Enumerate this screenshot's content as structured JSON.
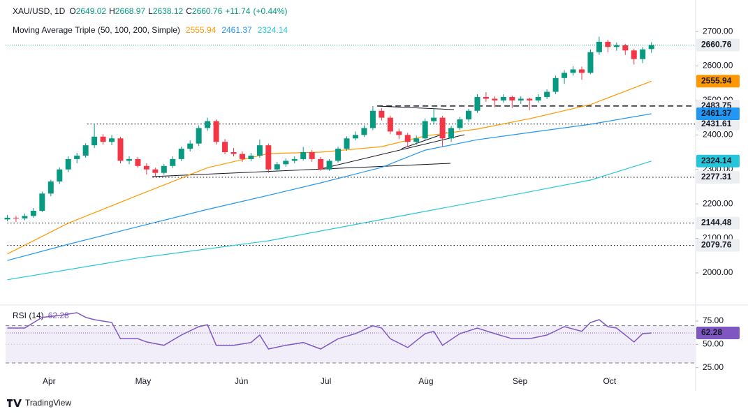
{
  "chart_data": {
    "type": "candlestick",
    "title": "XAU/USD, 1D",
    "ohlc_labels": [
      "O",
      "H",
      "L",
      "C"
    ],
    "change": {
      "value": 11.74,
      "label": "+11.74"
    },
    "change_pct": {
      "value": 0.44,
      "label": "(+0.44%)"
    },
    "up_color": "#089981",
    "down_color": "#f23645",
    "ylim": [
      1921,
      2771
    ],
    "yticks": [
      {
        "value": 2000,
        "label": "2000.00"
      },
      {
        "value": 2100,
        "label": "2100.00"
      },
      {
        "value": 2200,
        "label": "2200.00"
      },
      {
        "value": 2300,
        "label": "2300.00"
      },
      {
        "value": 2400,
        "label": "2400.00"
      },
      {
        "value": 2500,
        "label": "2500.00"
      },
      {
        "value": 2600,
        "label": "2600.00"
      },
      {
        "value": 2700,
        "label": "2700.00"
      }
    ],
    "xlim": [
      -0.2,
      79
    ],
    "xticks": [
      {
        "value": 4.8,
        "label": "Apr"
      },
      {
        "value": 15.6,
        "label": "May"
      },
      {
        "value": 26.9,
        "label": "Jun"
      },
      {
        "value": 36.6,
        "label": "Jul"
      },
      {
        "value": 48.1,
        "label": "Aug"
      },
      {
        "value": 58.9,
        "label": "Sep"
      },
      {
        "value": 69.2,
        "label": "Oct"
      }
    ],
    "candles": [
      [
        2155,
        2168,
        2150,
        2160
      ],
      [
        2160,
        2165,
        2148,
        2158
      ],
      [
        2158,
        2172,
        2152,
        2165
      ],
      [
        2165,
        2188,
        2160,
        2180
      ],
      [
        2180,
        2236,
        2176,
        2230
      ],
      [
        2230,
        2270,
        2222,
        2265
      ],
      [
        2265,
        2306,
        2258,
        2300
      ],
      [
        2300,
        2338,
        2292,
        2330
      ],
      [
        2330,
        2348,
        2318,
        2340
      ],
      [
        2340,
        2376,
        2334,
        2370
      ],
      [
        2370,
        2431.61,
        2362,
        2395
      ],
      [
        2395,
        2402,
        2372,
        2380
      ],
      [
        2380,
        2400,
        2370,
        2390
      ],
      [
        2390,
        2394,
        2318,
        2325
      ],
      [
        2325,
        2338,
        2315,
        2330
      ],
      [
        2330,
        2336,
        2305,
        2310
      ],
      [
        2310,
        2318,
        2285,
        2300
      ],
      [
        2300,
        2305,
        2277.31,
        2290
      ],
      [
        2290,
        2316,
        2285,
        2310
      ],
      [
        2310,
        2338,
        2304,
        2330
      ],
      [
        2330,
        2366,
        2324,
        2360
      ],
      [
        2360,
        2384,
        2352,
        2375
      ],
      [
        2375,
        2428,
        2368,
        2420
      ],
      [
        2420,
        2450,
        2412,
        2440
      ],
      [
        2440,
        2445,
        2372,
        2380
      ],
      [
        2380,
        2388,
        2344,
        2350
      ],
      [
        2350,
        2362,
        2338,
        2345
      ],
      [
        2345,
        2352,
        2322,
        2330
      ],
      [
        2330,
        2348,
        2324,
        2340
      ],
      [
        2340,
        2387,
        2334,
        2370
      ],
      [
        2370,
        2375,
        2290,
        2300
      ],
      [
        2300,
        2322,
        2294,
        2315
      ],
      [
        2315,
        2332,
        2308,
        2325
      ],
      [
        2325,
        2338,
        2318,
        2330
      ],
      [
        2330,
        2365,
        2326,
        2350
      ],
      [
        2350,
        2356,
        2322,
        2330
      ],
      [
        2330,
        2336,
        2296,
        2300
      ],
      [
        2300,
        2330,
        2296,
        2325
      ],
      [
        2325,
        2366,
        2320,
        2360
      ],
      [
        2360,
        2396,
        2354,
        2390
      ],
      [
        2390,
        2410,
        2384,
        2400
      ],
      [
        2400,
        2428,
        2394,
        2420
      ],
      [
        2420,
        2483.75,
        2414,
        2470
      ],
      [
        2470,
        2478,
        2442,
        2450
      ],
      [
        2450,
        2456,
        2402,
        2410
      ],
      [
        2410,
        2418,
        2388,
        2400
      ],
      [
        2400,
        2406,
        2364,
        2380
      ],
      [
        2380,
        2398,
        2372,
        2390
      ],
      [
        2390,
        2448,
        2386,
        2440
      ],
      [
        2440,
        2478,
        2432,
        2450
      ],
      [
        2450,
        2455,
        2366,
        2390
      ],
      [
        2390,
        2426,
        2380,
        2420
      ],
      [
        2420,
        2452,
        2414,
        2445
      ],
      [
        2445,
        2476,
        2438,
        2470
      ],
      [
        2470,
        2518,
        2464,
        2510
      ],
      [
        2510,
        2524,
        2496,
        2505
      ],
      [
        2505,
        2512,
        2480,
        2500
      ],
      [
        2500,
        2518,
        2494,
        2510
      ],
      [
        2510,
        2514,
        2478,
        2500
      ],
      [
        2500,
        2512,
        2490,
        2505
      ],
      [
        2505,
        2508,
        2472,
        2500
      ],
      [
        2500,
        2518,
        2494,
        2510
      ],
      [
        2510,
        2532,
        2504,
        2525
      ],
      [
        2525,
        2572,
        2518,
        2565
      ],
      [
        2565,
        2588,
        2548,
        2580
      ],
      [
        2580,
        2600,
        2572,
        2590
      ],
      [
        2590,
        2598,
        2560,
        2580
      ],
      [
        2580,
        2648,
        2576,
        2640
      ],
      [
        2640,
        2685,
        2632,
        2670
      ],
      [
        2670,
        2676,
        2640,
        2655
      ],
      [
        2655,
        2668,
        2644,
        2660
      ],
      [
        2660,
        2664,
        2632,
        2645
      ],
      [
        2645,
        2650,
        2604,
        2620
      ],
      [
        2620,
        2655,
        2608,
        2648
      ],
      [
        2649.02,
        2668.97,
        2638.12,
        2660.76
      ]
    ],
    "ma_title": "Moving Average Triple (50, 100, 200, Simple)",
    "ma": [
      {
        "color": "#ff9800",
        "x": [
          0,
          7,
          15,
          20,
          23,
          30,
          36,
          43,
          48,
          54,
          60,
          67,
          74
        ],
        "values": [
          2055,
          2144,
          2225,
          2275,
          2305,
          2346,
          2350,
          2366,
          2397,
          2417,
          2447,
          2488,
          2555.94
        ]
      },
      {
        "color": "#2196f3",
        "x": [
          0,
          7,
          15,
          23,
          30,
          36,
          43,
          48,
          54,
          60,
          67,
          74
        ],
        "values": [
          2036,
          2083,
          2134,
          2184,
          2225,
          2261,
          2306,
          2356,
          2386,
          2407,
          2431,
          2461.37
        ]
      },
      {
        "color": "#26c6da",
        "x": [
          0,
          15,
          30,
          45,
          60,
          67,
          74
        ],
        "values": [
          1980,
          2043,
          2093,
          2164,
          2235,
          2269,
          2324.14
        ]
      }
    ],
    "levels": [
      {
        "value": 2483.75,
        "style": "dashed",
        "from": 42.5
      },
      {
        "value": 2431.61,
        "style": "dotted",
        "from": 9.2
      },
      {
        "value": 2277.31,
        "style": "dotted",
        "from": 16.7
      },
      {
        "value": 2144.48,
        "style": "dotted",
        "from": 0
      },
      {
        "value": 2079.76,
        "style": "dotted",
        "from": 0
      }
    ],
    "rsi": {
      "title": "RSI (14)",
      "color": "#7e57c2",
      "ylim": [
        15,
        90
      ],
      "yticks": [
        {
          "value": 25,
          "label": "25.00"
        },
        {
          "value": 50,
          "label": "50.00"
        },
        {
          "value": 75,
          "label": "75.00"
        }
      ],
      "bands": [
        70,
        30
      ],
      "middle": 50,
      "x": [
        0,
        2,
        4,
        6,
        8,
        9,
        10,
        12,
        13,
        15,
        16,
        18,
        20,
        22,
        23,
        24,
        26,
        28,
        29,
        30,
        32,
        34,
        36,
        38,
        40,
        42,
        43,
        44,
        46,
        48,
        49,
        50,
        52,
        54,
        56,
        58,
        60,
        62,
        64,
        66,
        67,
        68,
        69,
        70,
        72,
        73,
        74
      ],
      "values": [
        67.5,
        67.5,
        79,
        81,
        84,
        79,
        76.5,
        73.5,
        56,
        56,
        52.6,
        49,
        60,
        69,
        71,
        49,
        49,
        52,
        60,
        45,
        49,
        52,
        45,
        56,
        61.5,
        70,
        67.5,
        56,
        46.6,
        61.5,
        64,
        49,
        61.5,
        67.5,
        61.5,
        56,
        56,
        60,
        69,
        64,
        73.5,
        76.5,
        69,
        67.5,
        52.6,
        61.5,
        62.28
      ]
    },
    "brand": "TradingView"
  }
}
